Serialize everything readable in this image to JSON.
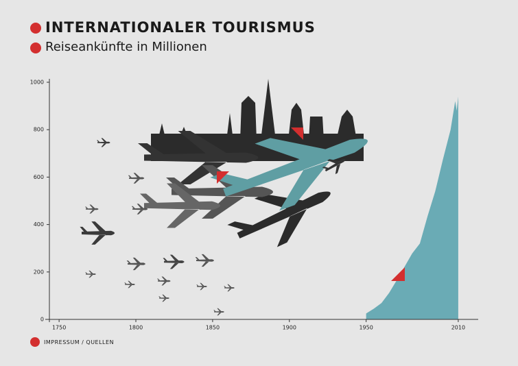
{
  "chart_data": {
    "type": "area",
    "title": "INTERNATIONALER TOURISMUS",
    "subtitle": "Reiseankünfte in Millionen",
    "footer": "IMPRESSUM / QUELLEN",
    "x": [
      1950,
      1955,
      1960,
      1965,
      1970,
      1975,
      1980,
      1985,
      1990,
      1995,
      2000,
      2005,
      2008,
      2009,
      2010
    ],
    "values": [
      25,
      45,
      69,
      112,
      166,
      222,
      278,
      320,
      435,
      540,
      674,
      800,
      920,
      880,
      940
    ],
    "color": "#6aabb5",
    "xlim": [
      1741,
      2023
    ],
    "xticks": [
      1750,
      1800,
      1850,
      1900,
      1950,
      2010
    ],
    "ylim": [
      0,
      1000
    ],
    "yticks": [
      0,
      200,
      400,
      600,
      800,
      1000
    ]
  }
}
